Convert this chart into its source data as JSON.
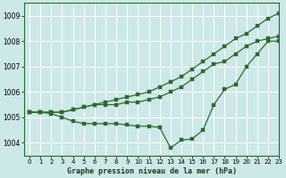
{
  "title": "Graphe pression niveau de la mer (hPa)",
  "bg_color": "#cce8e8",
  "grid_color": "#ffffff",
  "line_color": "#2d6a2d",
  "marker_color": "#2d6a2d",
  "xlim": [
    -0.5,
    23
  ],
  "ylim": [
    1003.5,
    1009.5
  ],
  "yticks": [
    1004,
    1005,
    1006,
    1007,
    1008,
    1009
  ],
  "xticks": [
    0,
    1,
    2,
    3,
    4,
    5,
    6,
    7,
    8,
    9,
    10,
    11,
    12,
    13,
    14,
    15,
    16,
    17,
    18,
    19,
    20,
    21,
    22,
    23
  ],
  "series": [
    [
      1005.2,
      1005.2,
      1005.2,
      1005.2,
      1005.3,
      1005.4,
      1005.5,
      1005.6,
      1005.7,
      1005.8,
      1005.9,
      1006.0,
      1006.2,
      1006.4,
      1006.6,
      1006.9,
      1007.2,
      1007.5,
      1007.8,
      1008.1,
      1008.3,
      1008.6,
      1008.9,
      1009.1
    ],
    [
      1005.2,
      1005.2,
      1005.2,
      1005.2,
      1005.3,
      1005.4,
      1005.5,
      1005.5,
      1005.5,
      1005.6,
      1005.6,
      1005.7,
      1005.8,
      1006.0,
      1006.2,
      1006.5,
      1006.8,
      1007.1,
      1007.2,
      1007.5,
      1007.8,
      1008.0,
      1008.1,
      1008.2
    ],
    [
      1005.2,
      1005.2,
      1005.15,
      1005.0,
      1004.85,
      1004.75,
      1004.75,
      1004.75,
      1004.75,
      1004.7,
      1004.65,
      1004.65,
      1004.6,
      1003.8,
      1004.1,
      1004.15,
      1004.5,
      1005.5,
      1006.1,
      1006.3,
      1007.0,
      1007.5,
      1008.0,
      1008.0
    ]
  ]
}
